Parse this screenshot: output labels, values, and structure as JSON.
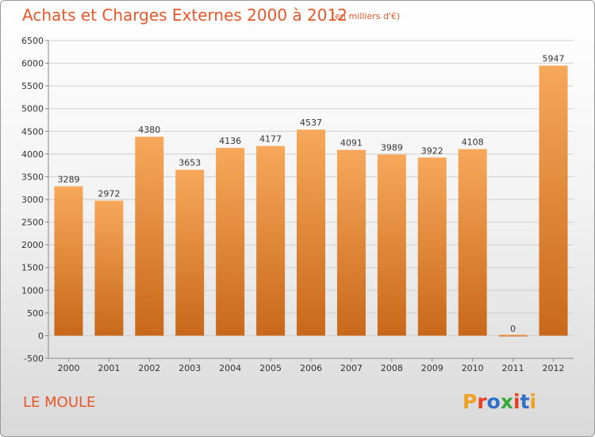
{
  "header": {
    "title": "Achats et Charges Externes 2000 à 2012",
    "subtitle": "(en milliers d'€)"
  },
  "footer": {
    "place": "LE MOULE",
    "logo_text": "Proxiti"
  },
  "colors": {
    "title": "#e8572a",
    "bar_light": "#f7a85a",
    "bar_dark": "#c8681a",
    "logo": [
      "#f0a020",
      "#e84020",
      "#3070c8",
      "#38a838",
      "#e84020",
      "#3070c8",
      "#f0a020"
    ]
  },
  "chart_data": {
    "type": "bar",
    "categories": [
      "2000",
      "2001",
      "2002",
      "2003",
      "2004",
      "2005",
      "2006",
      "2007",
      "2008",
      "2009",
      "2010",
      "2011",
      "2012"
    ],
    "values": [
      3289,
      2972,
      4380,
      3653,
      4136,
      4177,
      4537,
      4091,
      3989,
      3922,
      4108,
      0,
      5947
    ],
    "ylim": [
      -500,
      6500
    ],
    "yticks": [
      -500,
      0,
      500,
      1000,
      1500,
      2000,
      2500,
      3000,
      3500,
      4000,
      4500,
      5000,
      5500,
      6000,
      6500
    ],
    "grid": true,
    "legend": "none"
  }
}
